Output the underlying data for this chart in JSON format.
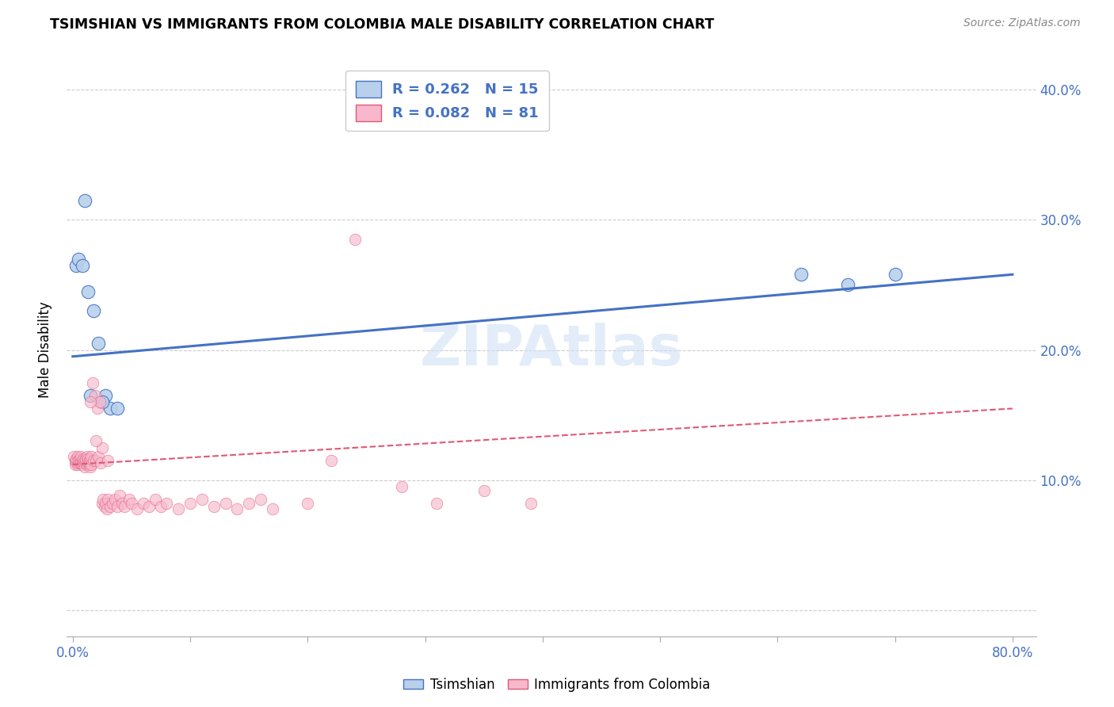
{
  "title": "TSIMSHIAN VS IMMIGRANTS FROM COLOMBIA MALE DISABILITY CORRELATION CHART",
  "source": "Source: ZipAtlas.com",
  "xlabel": "",
  "ylabel": "Male Disability",
  "xlim": [
    -0.005,
    0.82
  ],
  "ylim": [
    -0.02,
    0.42
  ],
  "xticks": [
    0.0,
    0.1,
    0.2,
    0.3,
    0.4,
    0.5,
    0.6,
    0.7,
    0.8
  ],
  "xtick_labels": [
    "0.0%",
    "",
    "",
    "",
    "",
    "",
    "",
    "",
    "80.0%"
  ],
  "yticks": [
    0.0,
    0.1,
    0.2,
    0.3,
    0.4
  ],
  "ytick_labels": [
    "",
    "10.0%",
    "20.0%",
    "30.0%",
    "40.0%"
  ],
  "background_color": "#ffffff",
  "grid_color": "#cccccc",
  "watermark": "ZIPAtlas",
  "tsimshian": {
    "label": "Tsimshian",
    "R": 0.262,
    "N": 15,
    "color": "#b8d0ec",
    "edge_color": "#4472c4",
    "line_color": "#4472c4",
    "x": [
      0.003,
      0.005,
      0.008,
      0.013,
      0.018,
      0.022,
      0.028,
      0.01,
      0.032,
      0.015,
      0.025,
      0.038,
      0.62,
      0.66,
      0.7
    ],
    "y": [
      0.265,
      0.27,
      0.265,
      0.245,
      0.23,
      0.205,
      0.165,
      0.315,
      0.155,
      0.165,
      0.16,
      0.155,
      0.258,
      0.25,
      0.258
    ]
  },
  "colombia": {
    "label": "Immigrants from Colombia",
    "R": 0.082,
    "N": 81,
    "color": "#f7b8cc",
    "edge_color": "#e05878",
    "line_color": "#e05878",
    "x": [
      0.001,
      0.002,
      0.002,
      0.003,
      0.003,
      0.004,
      0.004,
      0.005,
      0.005,
      0.005,
      0.006,
      0.006,
      0.007,
      0.007,
      0.008,
      0.008,
      0.009,
      0.009,
      0.01,
      0.01,
      0.011,
      0.011,
      0.012,
      0.012,
      0.013,
      0.013,
      0.014,
      0.014,
      0.015,
      0.015,
      0.016,
      0.016,
      0.017,
      0.018,
      0.019,
      0.02,
      0.021,
      0.022,
      0.023,
      0.024,
      0.025,
      0.026,
      0.027,
      0.028,
      0.029,
      0.03,
      0.032,
      0.034,
      0.036,
      0.038,
      0.04,
      0.042,
      0.044,
      0.048,
      0.05,
      0.055,
      0.06,
      0.065,
      0.07,
      0.075,
      0.08,
      0.09,
      0.1,
      0.11,
      0.12,
      0.13,
      0.14,
      0.15,
      0.16,
      0.17,
      0.2,
      0.22,
      0.24,
      0.28,
      0.31,
      0.35,
      0.39,
      0.03,
      0.025,
      0.02,
      0.015
    ],
    "y": [
      0.118,
      0.112,
      0.115,
      0.114,
      0.116,
      0.112,
      0.118,
      0.113,
      0.115,
      0.115,
      0.113,
      0.116,
      0.114,
      0.118,
      0.112,
      0.115,
      0.113,
      0.116,
      0.11,
      0.115,
      0.113,
      0.116,
      0.112,
      0.118,
      0.113,
      0.116,
      0.112,
      0.115,
      0.11,
      0.116,
      0.118,
      0.112,
      0.175,
      0.115,
      0.165,
      0.115,
      0.155,
      0.118,
      0.16,
      0.113,
      0.082,
      0.085,
      0.08,
      0.082,
      0.078,
      0.085,
      0.08,
      0.082,
      0.085,
      0.08,
      0.088,
      0.082,
      0.08,
      0.085,
      0.082,
      0.078,
      0.082,
      0.08,
      0.085,
      0.08,
      0.082,
      0.078,
      0.082,
      0.085,
      0.08,
      0.082,
      0.078,
      0.082,
      0.085,
      0.078,
      0.082,
      0.115,
      0.285,
      0.095,
      0.082,
      0.092,
      0.082,
      0.115,
      0.125,
      0.13,
      0.16
    ]
  },
  "ts_line_x": [
    0.0,
    0.8
  ],
  "ts_line_y": [
    0.195,
    0.258
  ],
  "co_line_x": [
    0.0,
    0.8
  ],
  "co_line_y": [
    0.112,
    0.155
  ]
}
